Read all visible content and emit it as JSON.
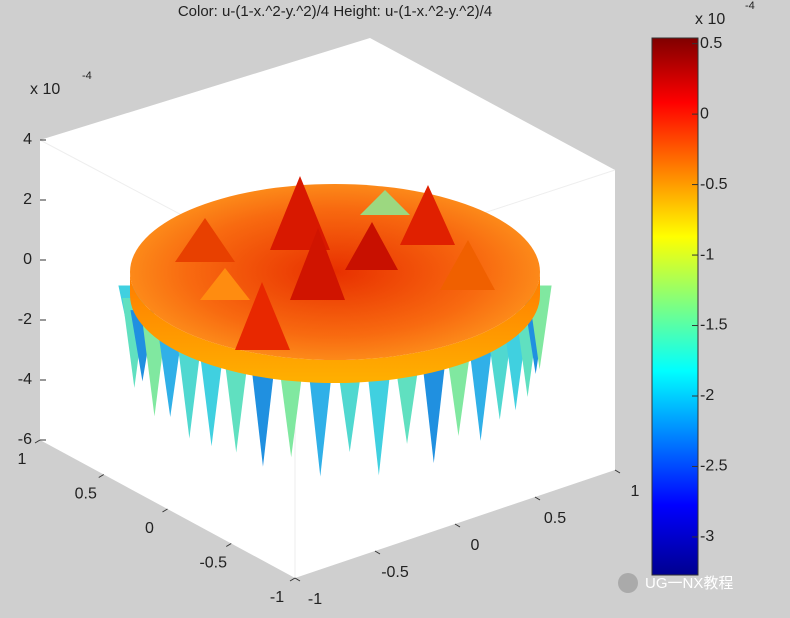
{
  "chart_data": {
    "type": "surface3d",
    "title": "Color: u-(1-x.^2-y.^2)/4  Height: u-(1-x.^2-y.^2)/4",
    "zlim": [
      -6,
      4
    ],
    "zticks": [
      -6,
      -4,
      -2,
      0,
      2,
      4
    ],
    "z_multiplier": {
      "base": "x 10",
      "power": "-4"
    },
    "xlim": [
      -1,
      1
    ],
    "xticks": [
      -1,
      -0.5,
      0,
      0.5,
      1
    ],
    "ylim": [
      -1,
      1
    ],
    "yticks": [
      1,
      0.5,
      0,
      -0.5,
      -1
    ],
    "colorbar": {
      "clim": [
        -3.27,
        0.54
      ],
      "ticks": [
        0.5,
        0,
        -0.5,
        -1,
        -1.5,
        -2,
        -2.5,
        -3
      ],
      "multiplier": {
        "base": "x 10",
        "power": "-4"
      },
      "colormap": "jet"
    },
    "watermark": "UG一NX教程"
  }
}
